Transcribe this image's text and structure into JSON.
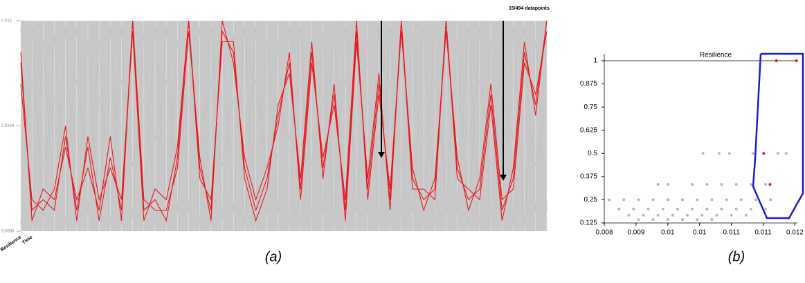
{
  "chart_data": [
    {
      "type": "parallel",
      "annotation": "15/494 datapoints",
      "caption": "(a)",
      "categories": [
        "Resilience",
        "Time",
        null,
        null,
        null,
        null,
        null,
        null,
        null,
        null,
        null,
        null,
        null,
        null,
        null,
        null,
        null,
        null,
        null,
        null,
        null,
        null,
        null,
        null,
        null,
        null,
        null,
        null,
        null,
        null,
        null,
        null,
        null,
        null,
        null,
        null,
        null,
        null,
        null,
        null,
        null,
        null,
        null,
        null,
        null,
        null,
        null,
        null
      ],
      "ylim": [
        0.0088,
        0.012
      ],
      "yticks": [
        0.0088,
        0.0104,
        0.012
      ],
      "series": [
        {
          "color": "#c4c4c4",
          "values": [
            0.0089,
            0.0119,
            0.009,
            0.0118,
            0.0089,
            0.0119,
            0.0091,
            0.0117,
            0.0089,
            0.0119,
            0.009,
            0.0118,
            0.0089,
            0.0119,
            0.0091,
            0.0117,
            0.0089,
            0.0119,
            0.009,
            0.0118,
            0.0089,
            0.0119,
            0.0091,
            0.0117,
            0.0089,
            0.0119,
            0.009,
            0.0118,
            0.0089,
            0.0119,
            0.0091,
            0.0117,
            0.0089,
            0.0119,
            0.009,
            0.0118,
            0.0089,
            0.0119,
            0.0091,
            0.0117,
            0.0089,
            0.0119,
            0.009,
            0.0118,
            0.0089,
            0.0119,
            0.0091,
            0.0117
          ]
        },
        {
          "color": "#c4c4c4",
          "values": [
            0.0119,
            0.0089,
            0.0117,
            0.0091,
            0.0119,
            0.0089,
            0.0117,
            0.0091,
            0.0119,
            0.0089,
            0.0117,
            0.0091,
            0.0119,
            0.0089,
            0.0117,
            0.0091,
            0.0119,
            0.0089,
            0.0117,
            0.0091,
            0.0119,
            0.0089,
            0.0117,
            0.0091,
            0.0119,
            0.0089,
            0.0117,
            0.0091,
            0.0119,
            0.0089,
            0.0117,
            0.0091,
            0.0119,
            0.0089,
            0.0117,
            0.0091,
            0.0119,
            0.0089,
            0.0117,
            0.0091,
            0.0119,
            0.0089,
            0.0117,
            0.0091,
            0.0119,
            0.0089,
            0.0117,
            0.0091
          ]
        },
        {
          "color": "#c4c4c4",
          "values": [
            0.0102,
            0.0111,
            0.0098,
            0.0108,
            0.0102,
            0.0111,
            0.0098,
            0.0108,
            0.0102,
            0.0111,
            0.0098,
            0.0108,
            0.0102,
            0.0111,
            0.0098,
            0.0108,
            0.0102,
            0.0111,
            0.0098,
            0.0108,
            0.0102,
            0.0111,
            0.0098,
            0.0108,
            0.0102,
            0.0111,
            0.0098,
            0.0108,
            0.0102,
            0.0111,
            0.0098,
            0.0108,
            0.0102,
            0.0111,
            0.0098,
            0.0108,
            0.0102,
            0.0111,
            0.0098,
            0.0108,
            0.0102,
            0.0111,
            0.0098,
            0.0108,
            0.0102,
            0.0111,
            0.0098,
            0.0108
          ]
        },
        {
          "color": "#e8161b",
          "values": [
            0.01136,
            0.00912,
            0.00928,
            0.00912,
            0.01024,
            0.00912,
            0.01008,
            0.00896,
            0.00992,
            0.00912,
            0.012,
            0.00912,
            0.00928,
            0.00896,
            0.00992,
            0.012,
            0.00976,
            0.00912,
            0.01184,
            0.01152,
            0.00976,
            0.00912,
            0.0096,
            0.01056,
            0.01136,
            0.00944,
            0.01152,
            0.00976,
            0.01088,
            0.00912,
            0.01184,
            0.00944,
            0.01104,
            0.00928,
            0.012,
            0.0096,
            0.00928,
            0.00944,
            0.012,
            0.00976,
            0.00928,
            0.00944,
            0.01088,
            0.00912,
            0.0096,
            0.01152,
            0.01072,
            0.012
          ]
        },
        {
          "color": "#e8161b",
          "values": [
            0.01152,
            0.00896,
            0.00944,
            0.00928,
            0.01008,
            0.00928,
            0.00976,
            0.00912,
            0.01024,
            0.00896,
            0.012,
            0.00928,
            0.00912,
            0.00912,
            0.00976,
            0.01184,
            0.00992,
            0.00896,
            0.012,
            0.01136,
            0.00992,
            0.00928,
            0.00976,
            0.0104,
            0.01152,
            0.00928,
            0.01136,
            0.00992,
            0.01072,
            0.00928,
            0.012,
            0.00928,
            0.01088,
            0.00944,
            0.01184,
            0.00976,
            0.00912,
            0.0096,
            0.01184,
            0.00992,
            0.00912,
            0.0096,
            0.01104,
            0.00928,
            0.00944,
            0.01136,
            0.01088,
            0.01184
          ]
        },
        {
          "color": "#e8161b",
          "values": [
            0.01104,
            0.00928,
            0.00912,
            0.00944,
            0.0104,
            0.00896,
            0.01024,
            0.00928,
            0.00976,
            0.00928,
            0.01184,
            0.00896,
            0.00944,
            0.00928,
            0.01008,
            0.012,
            0.0096,
            0.00928,
            0.01168,
            0.01168,
            0.0096,
            0.00896,
            0.00944,
            0.01072,
            0.0112,
            0.0096,
            0.01168,
            0.0096,
            0.01104,
            0.00896,
            0.01168,
            0.0096,
            0.0112,
            0.00912,
            0.012,
            0.00944,
            0.00944,
            0.00928,
            0.012,
            0.0096,
            0.00944,
            0.00928,
            0.01072,
            0.00896,
            0.00976,
            0.01168,
            0.01056,
            0.012
          ]
        }
      ]
    },
    {
      "type": "scatter",
      "title": "Resilience",
      "caption": "(b)",
      "xlim": [
        0.008,
        0.01195
      ],
      "xticks": [
        {
          "value": 0.008,
          "label": "0.008"
        },
        {
          "value": 0.00865,
          "label": "0.009"
        },
        {
          "value": 0.0093,
          "label": "0.01"
        },
        {
          "value": 0.00995,
          "label": "0.01"
        },
        {
          "value": 0.0106,
          "label": "0.011"
        },
        {
          "value": 0.01125,
          "label": "0.011"
        },
        {
          "value": 0.0119,
          "label": "0.012"
        }
      ],
      "ylim": [
        0.125,
        1
      ],
      "yticks": [
        0.125,
        0.25,
        0.375,
        0.5,
        0.625,
        0.75,
        0.875,
        1
      ],
      "series": [
        {
          "color": "#b8b8b8",
          "x": [
            0.0081,
            0.0084,
            0.0087,
            0.009,
            0.0093,
            0.0096,
            0.0099,
            0.0102,
            0.0105,
            0.0108,
            0.0111,
            0.0114,
            0.0083,
            0.0086,
            0.0089,
            0.0092,
            0.0095,
            0.0098,
            0.0101,
            0.0104,
            0.0107,
            0.011,
            0.0113,
            0.0085,
            0.0088,
            0.0091,
            0.0094,
            0.0097,
            0.01,
            0.0103,
            0.0106,
            0.0109,
            0.0087,
            0.009,
            0.0093,
            0.0096,
            0.0099,
            0.0102,
            0.0091,
            0.0093,
            0.0098,
            0.0101,
            0.0104,
            0.0107,
            0.011,
            0.0113,
            0.01002,
            0.01035,
            0.01056,
            0.01104,
            0.01155,
            0.01172,
            0.0112
          ],
          "y": [
            0.25,
            0.25,
            0.25,
            0.25,
            0.25,
            0.25,
            0.25,
            0.25,
            0.25,
            0.25,
            0.25,
            0.25,
            0.2,
            0.2,
            0.2,
            0.2,
            0.2,
            0.2,
            0.2,
            0.2,
            0.2,
            0.2,
            0.2,
            0.167,
            0.167,
            0.167,
            0.167,
            0.167,
            0.167,
            0.167,
            0.167,
            0.167,
            0.143,
            0.143,
            0.143,
            0.143,
            0.143,
            0.143,
            0.333,
            0.333,
            0.333,
            0.333,
            0.333,
            0.333,
            0.333,
            0.333,
            0.5,
            0.5,
            0.5,
            0.5,
            0.5,
            0.5,
            1
          ]
        },
        {
          "color": "#e8161b",
          "x": [
            0.01152,
            0.01193,
            0.01126,
            0.01139
          ],
          "y": [
            1,
            1,
            0.5,
            0.333
          ]
        }
      ]
    }
  ]
}
